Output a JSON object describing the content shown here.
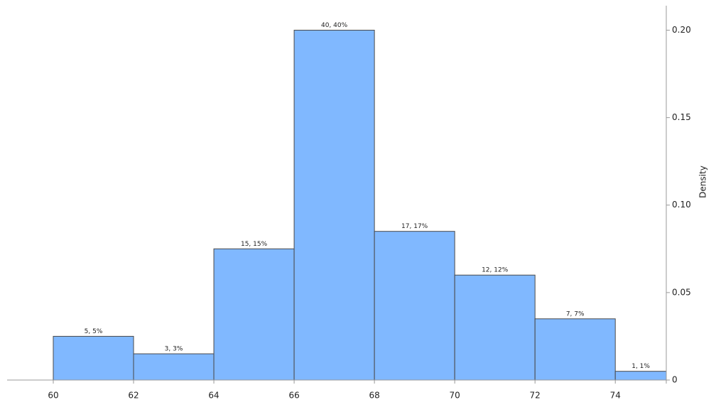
{
  "chart_data": {
    "type": "histogram",
    "bins": [
      60,
      62,
      64,
      66,
      68,
      70,
      72,
      74,
      76
    ],
    "values": [
      0.025,
      0.015,
      0.075,
      0.2,
      0.085,
      0.06,
      0.035,
      0.005
    ],
    "value_labels": [
      "5, 5%",
      "3, 3%",
      "15, 15%",
      "40, 40%",
      "17, 17%",
      "12, 12%",
      "7, 7%",
      "1, 1%"
    ],
    "color": "#80b8ff",
    "y_label": "Density",
    "xlim": [
      58.85,
      75.27
    ],
    "xticks": [
      60,
      62,
      64,
      66,
      68,
      70,
      72,
      74
    ],
    "ylim": [
      0,
      0.214
    ],
    "yticks": [
      0,
      0.05,
      {
        "value": 0.1,
        "label": "0.10"
      },
      0.15,
      {
        "value": 0.2,
        "label": "0.20"
      }
    ],
    "y_axis_side": "right"
  }
}
